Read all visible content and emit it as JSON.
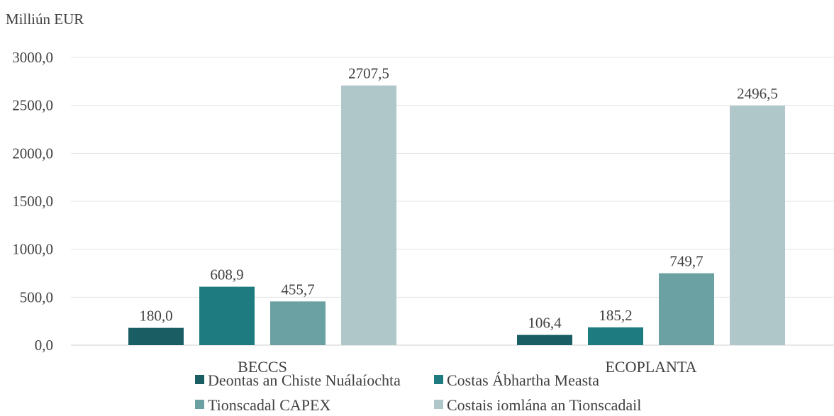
{
  "chart_data": {
    "type": "bar",
    "ylabel": "Milliún EUR",
    "categories": [
      "BECCS",
      "ECOPLANTA"
    ],
    "series": [
      {
        "name": "Deontas an Chiste Nuálaíochta",
        "values": [
          180.0,
          106.4
        ],
        "labels": [
          "180,0",
          "106,4"
        ]
      },
      {
        "name": "Costas Ábhartha Measta",
        "values": [
          608.9,
          185.2
        ],
        "labels": [
          "608,9",
          "185,2"
        ]
      },
      {
        "name": "Tionscadal CAPEX",
        "values": [
          455.7,
          749.7
        ],
        "labels": [
          "455,7",
          "749,7"
        ]
      },
      {
        "name": "Costais iomlána an Tionscadail",
        "values": [
          2707.5,
          2496.5
        ],
        "labels": [
          "2707,5",
          "2496,5"
        ]
      }
    ],
    "ylim": [
      0,
      3000
    ],
    "yticks": [
      0,
      500,
      1000,
      1500,
      2000,
      2500,
      3000
    ],
    "ytick_labels": [
      "0,0",
      "500,0",
      "1000,0",
      "1500,0",
      "2000,0",
      "2500,0",
      "3000,0"
    ],
    "grid": true,
    "legend_position": "bottom",
    "colors": [
      "#1a5e63",
      "#1e7b7f",
      "#6ba1a3",
      "#b0c7ca"
    ]
  }
}
